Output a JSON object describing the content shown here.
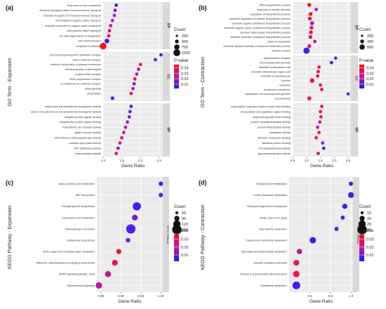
{
  "colorscale": [
    "#1a1aff",
    "#7b1fd6",
    "#c2189c",
    "#f0124f",
    "#ff0a1a"
  ],
  "panels": [
    {
      "tag": "(a)",
      "ytitle": "GO Term - Expansion",
      "xtitle": "Gene Ratio",
      "xlim": [
        1.0,
        2.6
      ],
      "xticks": [
        "1.0",
        "1.5",
        "2.0",
        "2.5"
      ],
      "xtick_values": [
        1.0,
        1.5,
        2.0,
        2.5
      ],
      "size_legend": {
        "title": "Count",
        "items": [
          "250",
          "500",
          "750",
          "1000"
        ]
      },
      "color_legend": {
        "title": "P-value",
        "items": [
          "0.04",
          "0.03",
          "0.02",
          "0.01"
        ]
      },
      "facets": [
        {
          "label": "BP",
          "rows": [
            {
              "term": "response to toxic substance",
              "x": 1.35,
              "p": 0.004,
              "size": 0.25
            },
            {
              "term": "obsolete inorganic cation transmembrane transport",
              "x": 1.32,
              "p": 0.008,
              "size": 0.25
            },
            {
              "term": "obsolete inorganic ion transmembrane transport",
              "x": 1.3,
              "p": 0.012,
              "size": 0.25
            },
            {
              "term": "monovalent inorganic cation transport",
              "x": 1.25,
              "p": 0.016,
              "size": 0.25
            },
            {
              "term": "obsolete response to organic cyclic compound",
              "x": 1.2,
              "p": 0.02,
              "size": 0.25
            },
            {
              "term": "monoatomic cation transport",
              "x": 1.17,
              "p": 0.024,
              "size": 0.25
            },
            {
              "term": "cell wall organization or biogenesis",
              "x": 1.15,
              "p": 0.032,
              "size": 0.25
            },
            {
              "term": "cell communication",
              "x": 1.1,
              "p": 0.004,
              "size": 0.55
            },
            {
              "term": "response to stimulus",
              "x": 1.0,
              "p": 0.04,
              "size": 1.0
            }
          ]
        },
        {
          "label": "CC",
          "rows": [
            {
              "term": "proton-transporting ATP synthase complex",
              "x": 2.55,
              "p": 0.004,
              "size": 0.25
            },
            {
              "term": "cation channel complex",
              "x": 2.4,
              "p": 0.006,
              "size": 0.25
            },
            {
              "term": "extrinsic component of plasma membrane",
              "x": 2.0,
              "p": 0.03,
              "size": 0.25
            },
            {
              "term": "retrotransposon nucleocapsid",
              "x": 1.95,
              "p": 0.018,
              "size": 0.25
            },
            {
              "term": "protein-DNA complex",
              "x": 1.9,
              "p": 0.02,
              "size": 0.25
            },
            {
              "term": "DNA polymerase complex",
              "x": 1.85,
              "p": 0.028,
              "size": 0.25
            },
            {
              "term": "monoatomic ion channel complex",
              "x": 1.83,
              "p": 0.012,
              "size": 0.25
            },
            {
              "term": "plastoglobule",
              "x": 1.8,
              "p": 0.016,
              "size": 0.25
            },
            {
              "term": "cell junction",
              "x": 1.75,
              "p": 0.032,
              "size": 0.25
            },
            {
              "term": "",
              "x": 1.25,
              "p": 0.003,
              "size": 0.3
            }
          ]
        },
        {
          "label": "MF",
          "rows": [
            {
              "term": "amino acid transmembrane transporter activity",
              "x": 1.75,
              "p": 0.004,
              "size": 0.25
            },
            {
              "term": "active monoatomic ion transmembrane transporter activity",
              "x": 1.72,
              "p": 0.006,
              "size": 0.25
            },
            {
              "term": "ubiquitin-protein ligase binding",
              "x": 1.7,
              "p": 0.01,
              "size": 0.25
            },
            {
              "term": "ubiquitin-like protein ligase binding",
              "x": 1.65,
              "p": 0.014,
              "size": 0.25
            },
            {
              "term": "monoatomic ion channel activity",
              "x": 1.6,
              "p": 0.018,
              "size": 0.25
            },
            {
              "term": "gated channel activity",
              "x": 1.55,
              "p": 0.02,
              "size": 0.25
            },
            {
              "term": "DNA-directed DNA polymerase activity",
              "x": 1.5,
              "p": 0.024,
              "size": 0.25
            },
            {
              "term": "cysteine-type lyase activity",
              "x": 1.45,
              "p": 0.028,
              "size": 0.25
            },
            {
              "term": "ATP hydrolysis activity",
              "x": 1.4,
              "p": 0.01,
              "size": 0.25
            },
            {
              "term": "endonuclease activity",
              "x": 1.35,
              "p": 0.034,
              "size": 0.25
            }
          ]
        }
      ]
    },
    {
      "tag": "(b)",
      "ytitle": "GO Term - Contraction",
      "xtitle": "Gene Ratio",
      "xlim": [
        0.5,
        2.6
      ],
      "xticks": [
        "0.5",
        "1.0",
        "1.5",
        "2.0",
        "2.5"
      ],
      "xtick_values": [
        0.5,
        1.0,
        1.5,
        2.0,
        2.5
      ],
      "size_legend": {
        "title": "Count",
        "items": [
          "200",
          "400",
          "600"
        ]
      },
      "color_legend": {
        "title": "P-value",
        "items": [
          "0.04",
          "0.03",
          "0.02",
          "0.01"
        ]
      },
      "facets": [
        {
          "label": "BP",
          "rows": [
            {
              "term": "RNA biosynthetic process",
              "x": 1.1,
              "p": 0.04,
              "size": 0.35
            },
            {
              "term": "response to abiotic stimulus",
              "x": 1.35,
              "p": 0.016,
              "size": 0.25
            },
            {
              "term": "regulation of biosynthetic process",
              "x": 1.15,
              "p": 0.04,
              "size": 0.35
            },
            {
              "term": "obsolete regulation of cellular biosynthetic process",
              "x": 1.12,
              "p": 0.036,
              "size": 0.35
            },
            {
              "term": "obsolete organic substance biosynthetic process",
              "x": 1.2,
              "p": 0.012,
              "size": 0.4
            },
            {
              "term": "obsolete organic cyclic compound biosynthetic process",
              "x": 1.18,
              "p": 0.03,
              "size": 0.35
            },
            {
              "term": "obsolete heterocycle biosynthetic process",
              "x": 1.16,
              "p": 0.026,
              "size": 0.35
            },
            {
              "term": "obsolete aromatic compound biosynthetic process",
              "x": 1.14,
              "p": 0.024,
              "size": 0.35
            },
            {
              "term": "cation homeostasis",
              "x": 1.3,
              "p": 0.02,
              "size": 0.25
            },
            {
              "term": "obsolete cellular aromatic compound metabolic process",
              "x": 1.1,
              "p": 0.034,
              "size": 0.35
            },
            {
              "term": "cellular process",
              "x": 1.0,
              "p": 0.004,
              "size": 0.9
            }
          ]
        },
        {
          "label": "CC",
          "rows": [
            {
              "term": "spliceosomal complex",
              "x": 2.05,
              "p": 0.008,
              "size": 0.25
            },
            {
              "term": "ribonucleoprotein granule",
              "x": 1.9,
              "p": 0.004,
              "size": 0.25
            },
            {
              "term": "obsolete nucleoplasm part",
              "x": 1.45,
              "p": 0.03,
              "size": 0.25
            },
            {
              "term": "obsolete extracellular region part",
              "x": 1.42,
              "p": 0.032,
              "size": 0.25
            },
            {
              "term": "obsolete endosomal part",
              "x": 1.4,
              "p": 0.026,
              "size": 0.25
            },
            {
              "term": "nucleus",
              "x": 1.2,
              "p": 0.034,
              "size": 0.5
            },
            {
              "term": "nucleolus",
              "x": 1.5,
              "p": 0.018,
              "size": 0.25
            },
            {
              "term": "endosome membrane",
              "x": 1.55,
              "p": 0.036,
              "size": 0.25
            },
            {
              "term": "cytoplasmic ribonucleoprotein granule",
              "x": 2.5,
              "p": 0.01,
              "size": 0.25
            },
            {
              "term": "cell periphery",
              "x": 1.1,
              "p": 0.028,
              "size": 0.4
            }
          ]
        },
        {
          "label": "MF",
          "rows": [
            {
              "term": "transcription regulator region nucleic acid binding",
              "x": 1.55,
              "p": 0.036,
              "size": 0.25
            },
            {
              "term": "transcription cis-regulatory region binding",
              "x": 1.5,
              "p": 0.034,
              "size": 0.25
            },
            {
              "term": "sequence-specific DNA binding",
              "x": 1.52,
              "p": 0.03,
              "size": 0.25
            },
            {
              "term": "protein homodimerization activity",
              "x": 1.48,
              "p": 0.02,
              "size": 0.25
            },
            {
              "term": "protein dimerization activity",
              "x": 1.4,
              "p": 0.016,
              "size": 0.25
            },
            {
              "term": "peptidase activity",
              "x": 1.45,
              "p": 0.026,
              "size": 0.25
            },
            {
              "term": "obsolete coenzyme binding",
              "x": 1.35,
              "p": 0.03,
              "size": 0.25
            },
            {
              "term": "identical protein binding",
              "x": 1.58,
              "p": 0.012,
              "size": 0.25
            },
            {
              "term": "hexosyltransferase activity",
              "x": 1.62,
              "p": 0.008,
              "size": 0.25
            },
            {
              "term": "glycosyltransferase activity",
              "x": 1.42,
              "p": 0.024,
              "size": 0.25
            }
          ]
        }
      ]
    },
    {
      "tag": "(c)",
      "ytitle": "KEGG Pathway - Expansion",
      "xtitle": "Gene Ratio",
      "xlim": [
        0.84,
        1.005
      ],
      "xticks": [
        "0.85",
        "0.90",
        "0.95",
        "1.00"
      ],
      "xtick_values": [
        0.85,
        0.9,
        0.95,
        1.0
      ],
      "strip": "KEGG Pathway",
      "size_legend": {
        "title": "Count",
        "items": [
          "60",
          "90",
          "120",
          "150"
        ]
      },
      "color_legend": {
        "title": "P-value",
        "items": [
          "0.03",
          "0.02",
          "0.01"
        ]
      },
      "facets": [
        {
          "label": "",
          "rows": [
            {
              "term": "alpha-Linolenic acid metabolism",
              "x": 1.0,
              "p": 0.004,
              "size": 0.3
            },
            {
              "term": "ABC transporters",
              "x": 1.0,
              "p": 0.006,
              "size": 0.3
            },
            {
              "term": "Phenylpropanoid biosynthesis",
              "x": 0.94,
              "p": 0.004,
              "size": 0.85
            },
            {
              "term": "Cyanoamino acid metabolism",
              "x": 0.935,
              "p": 0.008,
              "size": 0.5
            },
            {
              "term": "Plant-pathogen interaction",
              "x": 0.925,
              "p": 0.005,
              "size": 1.0
            },
            {
              "term": "Isoflavonoid biosynthesis",
              "x": 0.918,
              "p": 0.012,
              "size": 0.35
            },
            {
              "term": "Amino sugar and nucleotide sugar metabolism",
              "x": 0.895,
              "p": 0.034,
              "size": 0.4
            },
            {
              "term": "Stilbenoid, diarylheptanoid and gingerol biosynthesis",
              "x": 0.885,
              "p": 0.026,
              "size": 0.5
            },
            {
              "term": "MAPK signaling pathway - plant",
              "x": 0.868,
              "p": 0.022,
              "size": 0.55
            },
            {
              "term": "Mitochondrial biogenesis",
              "x": 0.845,
              "p": 0.02,
              "size": 0.6
            }
          ]
        }
      ]
    },
    {
      "tag": "(d)",
      "ytitle": "KEGG Pathway - Contraction",
      "xtitle": "Gene Ratio",
      "xlim": [
        0.4,
        1.02
      ],
      "xticks": [
        "0.6",
        "0.8",
        "1.0"
      ],
      "xtick_values": [
        0.6,
        0.8,
        1.0
      ],
      "strip": "KEGG Pathway",
      "size_legend": {
        "title": "Count",
        "items": [
          "15",
          "20",
          "25",
          "30"
        ]
      },
      "color_legend": {
        "title": "P-value",
        "items": [
          "0.03",
          "0.02",
          "0.01"
        ]
      },
      "facets": [
        {
          "label": "",
          "rows": [
            {
              "term": "Sulfoquinovose metabolism",
              "x": 1.0,
              "p": 0.004,
              "size": 0.3
            },
            {
              "term": "Inositol phosphate metabolism",
              "x": 1.0,
              "p": 0.004,
              "size": 0.55
            },
            {
              "term": "Ribosome biogenesis in eukaryotes",
              "x": 0.94,
              "p": 0.004,
              "size": 0.45
            },
            {
              "term": "Citrate cycle (TCA cycle)",
              "x": 0.92,
              "p": 0.006,
              "size": 0.3
            },
            {
              "term": "beta-Alanine metabolism",
              "x": 0.86,
              "p": 0.006,
              "size": 0.3
            },
            {
              "term": "Cysteine and methionine metabolism",
              "x": 0.63,
              "p": 0.004,
              "size": 0.65
            },
            {
              "term": "Glyoxylate and dicarboxylate metabolism",
              "x": 0.5,
              "p": 0.02,
              "size": 0.5
            },
            {
              "term": "Ubiquitin mediated proteolysis",
              "x": 0.47,
              "p": 0.026,
              "size": 0.55
            },
            {
              "term": "Pentose and glucuronate interconversions",
              "x": 0.47,
              "p": 0.032,
              "size": 0.65
            },
            {
              "term": "Glutathione metabolism",
              "x": 0.47,
              "p": 0.004,
              "size": 0.85
            }
          ]
        }
      ]
    }
  ],
  "chart_data": [
    {
      "type": "scatter",
      "title": "",
      "xlabel": "Gene Ratio",
      "ylabel": "GO Term - Expansion",
      "xlim": [
        1.0,
        2.6
      ],
      "facets": [
        "BP",
        "CC",
        "MF"
      ]
    },
    {
      "type": "scatter",
      "title": "",
      "xlabel": "Gene Ratio",
      "ylabel": "GO Term - Contraction",
      "xlim": [
        0.5,
        2.6
      ],
      "facets": [
        "BP",
        "CC",
        "MF"
      ]
    },
    {
      "type": "scatter",
      "title": "",
      "xlabel": "Gene Ratio",
      "ylabel": "KEGG Pathway - Expansion",
      "xlim": [
        0.84,
        1.005
      ]
    },
    {
      "type": "scatter",
      "title": "",
      "xlabel": "Gene Ratio",
      "ylabel": "KEGG Pathway - Contraction",
      "xlim": [
        0.4,
        1.02
      ]
    }
  ]
}
